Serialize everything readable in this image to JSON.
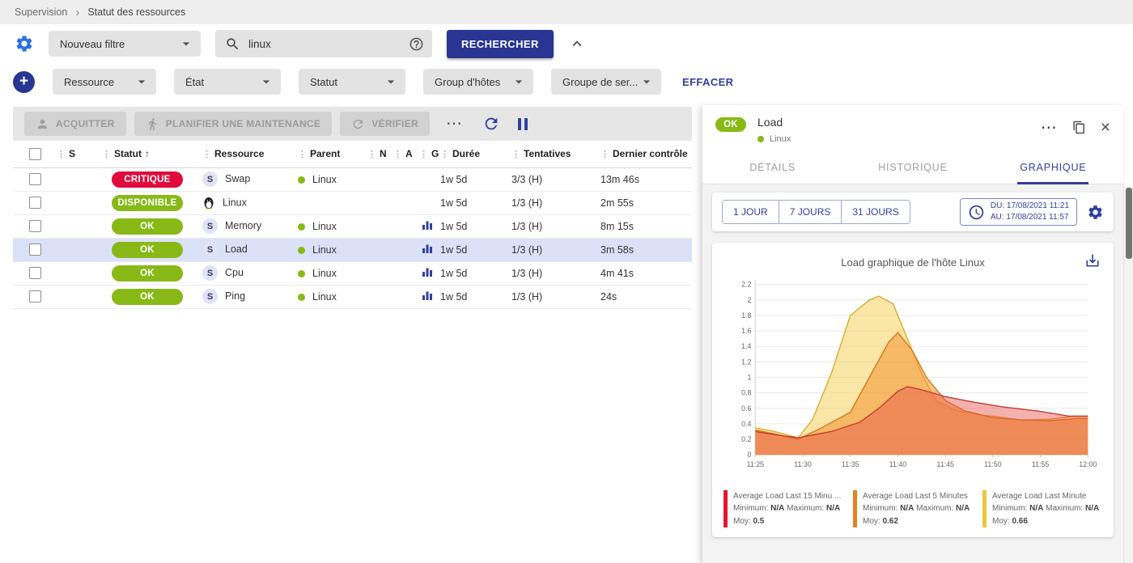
{
  "breadcrumb": {
    "items": [
      "Supervision",
      "Statut des ressources"
    ],
    "separator": "›"
  },
  "glyphs": {
    "kebab": "⋮",
    "more": "⋯",
    "close": "×",
    "plus": "+"
  },
  "filters": {
    "saved_filter": {
      "value": "Nouveau filtre"
    },
    "search": {
      "value": "linux"
    },
    "search_button": "RECHERCHER",
    "criteria": [
      {
        "label": "Ressource"
      },
      {
        "label": "État"
      },
      {
        "label": "Statut"
      },
      {
        "label": "Group d'hôtes"
      },
      {
        "label": "Groupe de ser..."
      }
    ],
    "clear_button": "EFFACER"
  },
  "toolbar": {
    "acknowledge": "ACQUITTER",
    "maintenance": "PLANIFIER UNE MAINTENANCE",
    "check": "VÉRIFIER"
  },
  "table": {
    "headers": [
      "S",
      "Statut",
      "Ressource",
      "Parent",
      "N",
      "A",
      "G",
      "Durée",
      "Tentatives",
      "Dernier contrôle"
    ],
    "sort": {
      "column": "Statut",
      "direction": "↑"
    },
    "rows": [
      {
        "status": "CRITIQUE",
        "status_color": "#e00b3c",
        "resource": "Swap",
        "resource_icon": "S",
        "parent": "Linux",
        "duration": "1w 5d",
        "tries": "3/3 (H)",
        "last_check": "13m 46s",
        "graph": false,
        "selected": false
      },
      {
        "status": "DISPONIBLE",
        "status_color": "#88b917",
        "resource": "Linux",
        "resource_icon": "penguin",
        "parent": "",
        "duration": "1w 5d",
        "tries": "1/3 (H)",
        "last_check": "2m 55s",
        "graph": false,
        "selected": false
      },
      {
        "status": "OK",
        "status_color": "#88b917",
        "resource": "Memory",
        "resource_icon": "S",
        "parent": "Linux",
        "duration": "1w 5d",
        "tries": "1/3 (H)",
        "last_check": "8m 15s",
        "graph": true,
        "selected": false
      },
      {
        "status": "OK",
        "status_color": "#88b917",
        "resource": "Load",
        "resource_icon": "S",
        "parent": "Linux",
        "duration": "1w 5d",
        "tries": "1/3 (H)",
        "last_check": "3m 58s",
        "graph": true,
        "selected": true
      },
      {
        "status": "OK",
        "status_color": "#88b917",
        "resource": "Cpu",
        "resource_icon": "S",
        "parent": "Linux",
        "duration": "1w 5d",
        "tries": "1/3 (H)",
        "last_check": "4m 41s",
        "graph": true,
        "selected": false
      },
      {
        "status": "OK",
        "status_color": "#88b917",
        "resource": "Ping",
        "resource_icon": "S",
        "parent": "Linux",
        "duration": "1w 5d",
        "tries": "1/3 (H)",
        "last_check": "24s",
        "graph": true,
        "selected": false
      }
    ]
  },
  "panel": {
    "status": "OK",
    "status_color": "#88b917",
    "title": "Load",
    "subtitle": "Linux",
    "tabs": [
      "DÉTAILS",
      "HISTORIQUE",
      "GRAPHIQUE"
    ],
    "active_tab": "GRAPHIQUE",
    "ranges": [
      "1 JOUR",
      "7 JOURS",
      "31 JOURS"
    ],
    "period": {
      "from": "DU: 17/08/2021 11:21",
      "to": "AU: 17/08/2021 11:57"
    },
    "chart_title": "Load graphique de l'hôte Linux",
    "legend_labels": {
      "min": "Minimum:",
      "max": "Maximum:",
      "avg": "Moy:"
    },
    "legend": [
      {
        "name": "Average Load Last 15 Minu ...",
        "min": "N/A",
        "max": "N/A",
        "avg": "0.5",
        "color": "#e8132f"
      },
      {
        "name": "Average Load Last 5 Minutes",
        "min": "N/A",
        "max": "N/A",
        "avg": "0.62",
        "color": "#e8811c"
      },
      {
        "name": "Average Load Last Minute",
        "min": "N/A",
        "max": "N/A",
        "avg": "0.66",
        "color": "#efc53c"
      }
    ]
  },
  "chart_data": {
    "type": "area",
    "title": "Load graphique de l'hôte Linux",
    "x_ticks": [
      "11:25",
      "11:30",
      "11:35",
      "11:40",
      "11:45",
      "11:50",
      "11:55",
      "12:00"
    ],
    "x_minutes_span": 35,
    "ylim": [
      0,
      2.2
    ],
    "y_tick_step": 0.2,
    "grid": true,
    "legend_position": "bottom",
    "series": [
      {
        "name": "Average Load Last Minute",
        "avg": 0.66,
        "color": "#d9ab2b",
        "fill": "rgba(246,205,80,0.5)",
        "x": [
          0,
          2,
          4.5,
          6,
          8,
          10,
          12,
          13,
          14.5,
          16,
          17.5,
          19,
          21,
          23,
          25,
          28,
          31,
          33.5,
          35
        ],
        "y": [
          0.35,
          0.3,
          0.22,
          0.45,
          1.05,
          1.8,
          2.0,
          2.05,
          1.95,
          1.5,
          1.05,
          0.7,
          0.58,
          0.52,
          0.5,
          0.45,
          0.46,
          0.5,
          0.5
        ]
      },
      {
        "name": "Average Load Last 5 Minutes",
        "avg": 0.62,
        "color": "#d8751c",
        "fill": "rgba(242,147,48,0.55)",
        "x": [
          0,
          2,
          4.5,
          7,
          10,
          12,
          14,
          15,
          16.5,
          18,
          20,
          22,
          25,
          28,
          31,
          34,
          35
        ],
        "y": [
          0.32,
          0.27,
          0.2,
          0.35,
          0.55,
          1.0,
          1.45,
          1.58,
          1.35,
          1.0,
          0.7,
          0.57,
          0.48,
          0.45,
          0.44,
          0.47,
          0.47
        ]
      },
      {
        "name": "Average Load Last 15 Minutes",
        "avg": 0.5,
        "color": "#c23b34",
        "fill": "rgba(230,85,75,0.45)",
        "x": [
          0,
          2,
          4.5,
          8,
          11,
          13,
          15,
          16,
          17.5,
          20,
          23,
          26,
          30,
          33,
          35
        ],
        "y": [
          0.3,
          0.26,
          0.22,
          0.3,
          0.42,
          0.6,
          0.82,
          0.88,
          0.84,
          0.75,
          0.68,
          0.62,
          0.56,
          0.5,
          0.5
        ]
      }
    ]
  }
}
